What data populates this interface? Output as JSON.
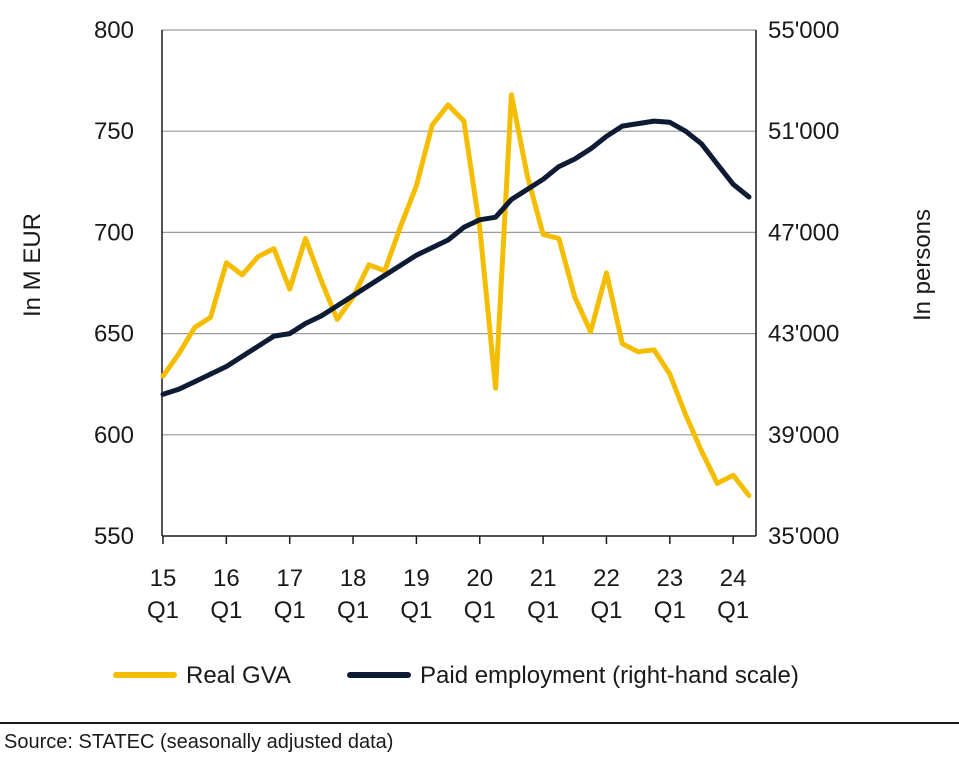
{
  "chart_data": {
    "type": "line",
    "ylabel": "In M EUR",
    "y2label": "In persons",
    "ylim": [
      550,
      800
    ],
    "y2lim": [
      35000,
      55000
    ],
    "yticks": [
      "550",
      "600",
      "650",
      "700",
      "750",
      "800"
    ],
    "y2ticks": [
      "35'000",
      "39'000",
      "43'000",
      "47'000",
      "51'000",
      "55'000"
    ],
    "xtick_years": [
      "15",
      "16",
      "17",
      "18",
      "19",
      "20",
      "21",
      "22",
      "23",
      "24"
    ],
    "xtick_quarter": "Q1",
    "grid": true,
    "legend_position": "bottom",
    "series": [
      {
        "name": "Real GVA",
        "axis": "left",
        "color": "#f5bd00",
        "values": [
          629,
          640,
          653,
          658,
          685,
          679,
          688,
          692,
          672,
          697,
          676,
          657,
          668,
          684,
          681,
          703,
          723,
          753,
          763,
          755,
          702,
          623,
          768,
          728,
          699,
          697,
          668,
          651,
          680,
          645,
          641,
          642,
          630,
          610,
          592,
          576,
          580,
          570
        ]
      },
      {
        "name": "Paid employment (right-hand scale)",
        "axis": "right",
        "color": "#0d1b35",
        "values": [
          40600,
          40800,
          41100,
          41400,
          41700,
          42100,
          42500,
          42900,
          43000,
          43400,
          43700,
          44100,
          44500,
          44900,
          45300,
          45700,
          46100,
          46400,
          46700,
          47200,
          47500,
          47600,
          48300,
          48700,
          49100,
          49600,
          49900,
          50300,
          50800,
          51200,
          51300,
          51400,
          51350,
          51000,
          50500,
          49700,
          48900,
          48400
        ]
      }
    ]
  },
  "source": "Source: STATEC (seasonally adjusted data)"
}
